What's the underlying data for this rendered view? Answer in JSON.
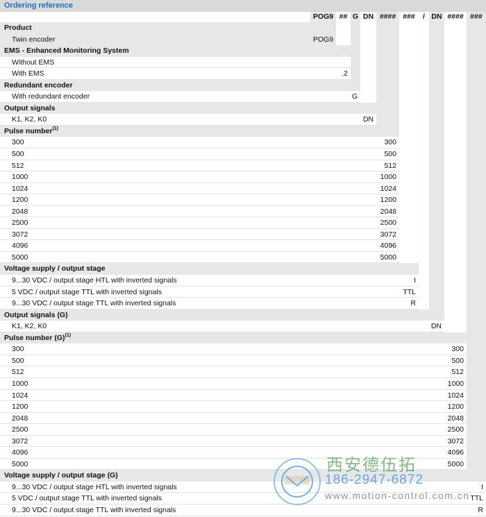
{
  "title": "Ordering reference",
  "columns": [
    "POG9",
    "##",
    "G",
    "DN",
    "####",
    "###",
    "/",
    "DN",
    "####",
    "###"
  ],
  "groups": [
    {
      "header": "Product",
      "items": [
        {
          "label": "Twin encoder",
          "value": "POG9",
          "gray": true
        }
      ]
    },
    {
      "header": "EMS - Enhanced Monitoring System",
      "items": [
        {
          "label": "Without EMS",
          "value": ""
        },
        {
          "label": "With EMS",
          "value": ".2"
        }
      ]
    },
    {
      "header": "Redundant encoder",
      "items": [
        {
          "label": "With redundant encoder",
          "value": "G"
        }
      ]
    },
    {
      "header": "Output signals",
      "items": [
        {
          "label": "K1, K2, K0",
          "value": "DN"
        }
      ]
    },
    {
      "header": "Pulse number",
      "sup": "(1)",
      "items": [
        {
          "label": "300",
          "value": "300"
        },
        {
          "label": "500",
          "value": "500"
        },
        {
          "label": "512",
          "value": "512"
        },
        {
          "label": "1000",
          "value": "1000"
        },
        {
          "label": "1024",
          "value": "1024"
        },
        {
          "label": "1200",
          "value": "1200"
        },
        {
          "label": "2048",
          "value": "2048"
        },
        {
          "label": "2500",
          "value": "2500"
        },
        {
          "label": "3072",
          "value": "3072"
        },
        {
          "label": "4096",
          "value": "4096"
        },
        {
          "label": "5000",
          "value": "5000"
        }
      ]
    },
    {
      "header": "Voltage supply / output stage",
      "items": [
        {
          "label": "9...30 VDC / output stage HTL with inverted signals",
          "value": "I"
        },
        {
          "label": "5 VDC / output stage TTL with inverted signals",
          "value": "TTL"
        },
        {
          "label": "9...30 VDC / output stage TTL with inverted signals",
          "value": "R"
        }
      ]
    },
    {
      "header": "Output signals (G)",
      "items": [
        {
          "label": "K1, K2, K0",
          "value": "DN"
        }
      ]
    },
    {
      "header": "Pulse number (G)",
      "sup": "(1)",
      "items": [
        {
          "label": "300",
          "value": "300"
        },
        {
          "label": "500",
          "value": "500"
        },
        {
          "label": "512",
          "value": "512"
        },
        {
          "label": "1000",
          "value": "1000"
        },
        {
          "label": "1024",
          "value": "1024"
        },
        {
          "label": "1200",
          "value": "1200"
        },
        {
          "label": "2048",
          "value": "2048"
        },
        {
          "label": "2500",
          "value": "2500"
        },
        {
          "label": "3072",
          "value": "3072"
        },
        {
          "label": "4096",
          "value": "4096"
        },
        {
          "label": "5000",
          "value": "5000"
        }
      ]
    },
    {
      "header": "Voltage supply / output stage (G)",
      "items": [
        {
          "label": "9...30 VDC / output stage HTL with inverted signals",
          "value": "I"
        },
        {
          "label": "5 VDC / output stage TTL with inverted signals",
          "value": "TTL"
        },
        {
          "label": "9...30 VDC / output stage TTL with inverted signals",
          "value": "R"
        }
      ]
    }
  ],
  "watermark": {
    "company": "西安德伍拓",
    "phone": "186-2947-6872",
    "url": "www.motion-control.com.cn"
  }
}
